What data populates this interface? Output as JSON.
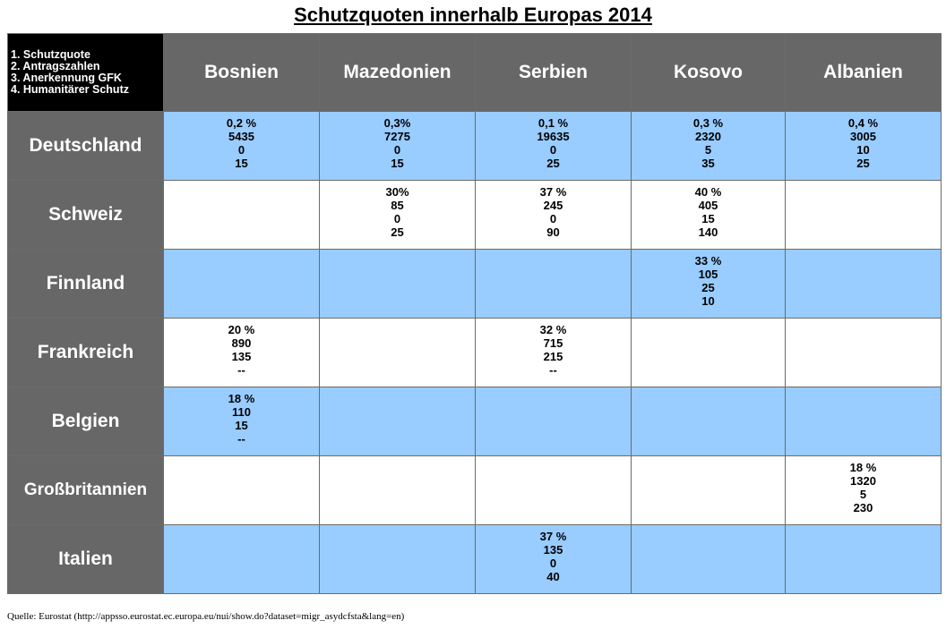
{
  "title": "Schutzquoten innerhalb Europas 2014",
  "legend": [
    "1. Schutzquote",
    "2. Antragszahlen",
    "3. Anerkennung GFK",
    "4. Humanitärer Schutz"
  ],
  "columns": [
    "Bosnien",
    "Mazedonien",
    "Serbien",
    "Kosovo",
    "Albanien"
  ],
  "colors": {
    "header_bg": "#676767",
    "legend_bg": "#000000",
    "row_blue": "#99ccff",
    "row_white": "#ffffff"
  },
  "source": "Quelle: Eurostat (http://appsso.eurostat.ec.europa.eu/nui/show.do?dataset=migr_asydcfsta&lang=en)",
  "chart_data": {
    "type": "table",
    "title": "Schutzquoten innerhalb Europas 2014",
    "columns": [
      "Bosnien",
      "Mazedonien",
      "Serbien",
      "Kosovo",
      "Albanien"
    ],
    "rows": [
      {
        "country": "Deutschland",
        "cells": [
          [
            "0,2 %",
            "5435",
            "0",
            "15"
          ],
          [
            "0,3%",
            "7275",
            "0",
            "15"
          ],
          [
            "0,1 %",
            "19635",
            "0",
            "25"
          ],
          [
            "0,3 %",
            "2320",
            "5",
            "35"
          ],
          [
            "0,4 %",
            "3005",
            "10",
            "25"
          ]
        ]
      },
      {
        "country": "Schweiz",
        "cells": [
          [],
          [
            "30%",
            "85",
            "0",
            "25"
          ],
          [
            "37 %",
            "245",
            "0",
            "90"
          ],
          [
            "40 %",
            "405",
            "15",
            "140"
          ],
          []
        ]
      },
      {
        "country": "Finnland",
        "cells": [
          [],
          [],
          [],
          [
            "33 %",
            "105",
            "25",
            "10"
          ],
          []
        ]
      },
      {
        "country": "Frankreich",
        "cells": [
          [
            "20 %",
            "890",
            "135",
            "--"
          ],
          [],
          [
            "32 %",
            "715",
            "215",
            "--"
          ],
          [],
          []
        ]
      },
      {
        "country": "Belgien",
        "cells": [
          [
            "18 %",
            "110",
            "15",
            "--"
          ],
          [],
          [],
          [],
          []
        ]
      },
      {
        "country": "Großbritannien",
        "cells": [
          [],
          [],
          [],
          [],
          [
            "18 %",
            "1320",
            "5",
            "230"
          ]
        ]
      },
      {
        "country": "Italien",
        "cells": [
          [],
          [],
          [
            "37 %",
            "135",
            "0",
            "40"
          ],
          [],
          []
        ]
      }
    ]
  }
}
